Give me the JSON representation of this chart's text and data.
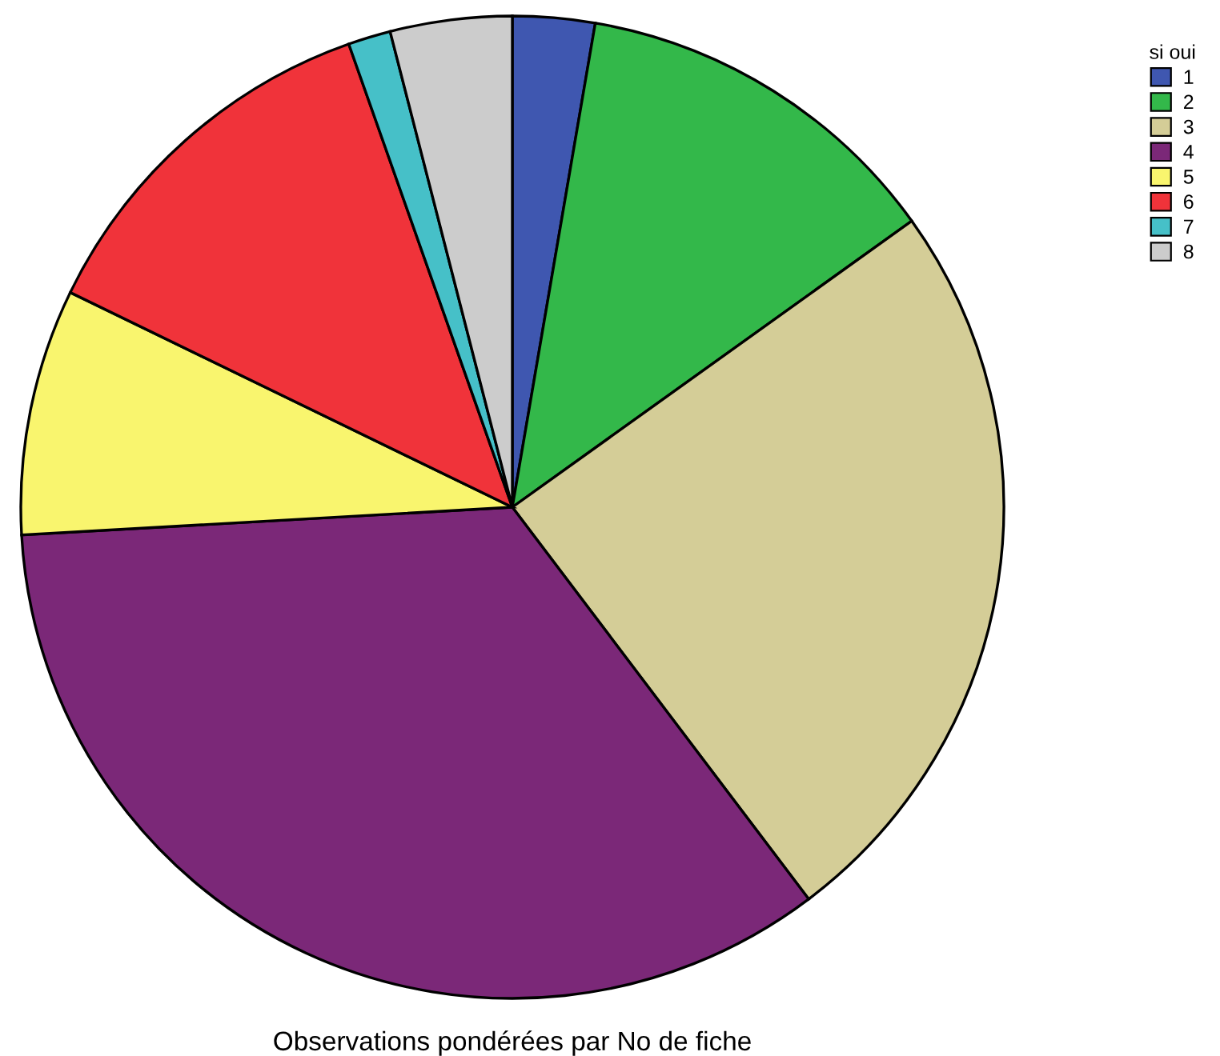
{
  "chart_data": {
    "type": "pie",
    "xlabel": "Observations pondérées par No de fiche",
    "legend_title": "si oui",
    "legend": "top right",
    "categories": [
      "1",
      "2",
      "3",
      "4",
      "5",
      "6",
      "7",
      "8"
    ],
    "values": [
      2.7,
      12.4,
      24.6,
      34.4,
      8.1,
      12.4,
      1.4,
      4.0
    ],
    "colors": [
      "#3f57b0",
      "#33b84a",
      "#d4cd97",
      "#7b2878",
      "#f9f56e",
      "#f0333a",
      "#46c0c8",
      "#cccccc"
    ]
  }
}
